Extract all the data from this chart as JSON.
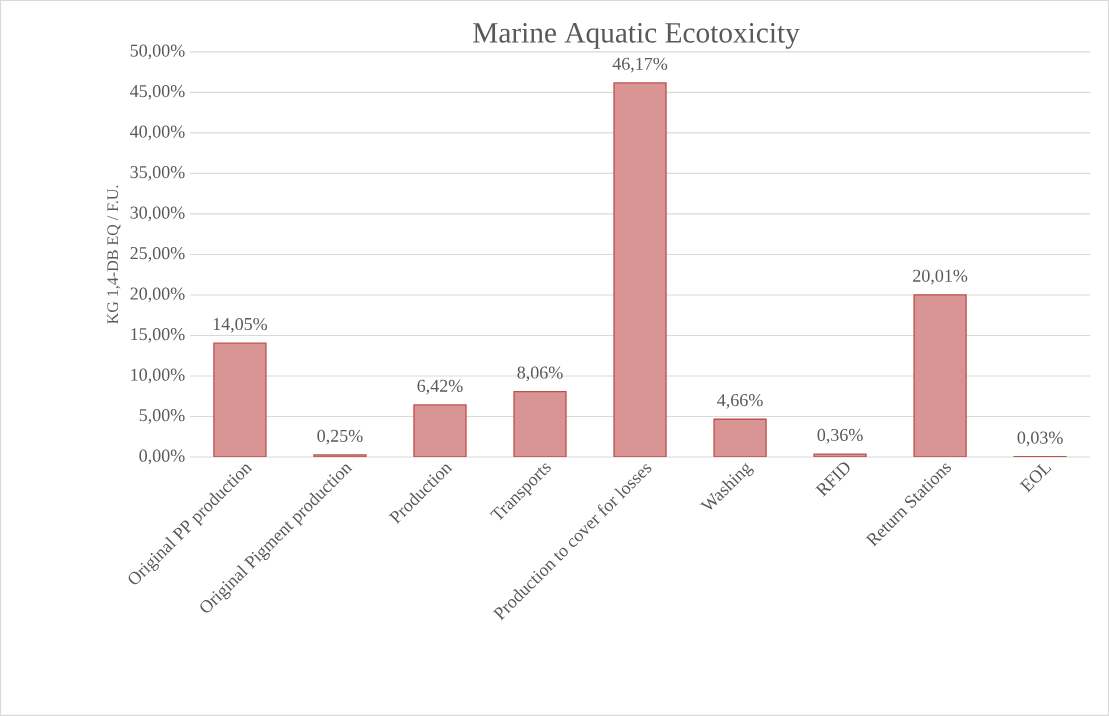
{
  "chart_data": {
    "type": "bar",
    "title": "Marine Aquatic Ecotoxicity",
    "ylabel": "KG 1,4-DB EQ / F.U.",
    "categories": [
      "Original PP production",
      "Original Pigment production",
      "Production",
      "Transports",
      "Production to cover for losses",
      "Washing",
      "RFID",
      "Return Stations",
      "EOL"
    ],
    "values": [
      14.05,
      0.25,
      6.42,
      8.06,
      46.17,
      4.66,
      0.36,
      20.01,
      0.03
    ],
    "value_labels": [
      "14,05%",
      "0,25%",
      "6,42%",
      "8,06%",
      "46,17%",
      "4,66%",
      "0,36%",
      "20,01%",
      "0,03%"
    ],
    "color": "#d99594",
    "ylim": [
      0,
      50
    ],
    "yticks": [
      {
        "value": 0,
        "label": "0,00%"
      },
      {
        "value": 5,
        "label": "5,00%"
      },
      {
        "value": 10,
        "label": "10,00%"
      },
      {
        "value": 15,
        "label": "15,00%"
      },
      {
        "value": 20,
        "label": "20,00%"
      },
      {
        "value": 25,
        "label": "25,00%"
      },
      {
        "value": 30,
        "label": "30,00%"
      },
      {
        "value": 35,
        "label": "35,00%"
      },
      {
        "value": 40,
        "label": "40,00%"
      },
      {
        "value": 45,
        "label": "45,00%"
      },
      {
        "value": 50,
        "label": "50,00%"
      }
    ],
    "grid": "y"
  }
}
